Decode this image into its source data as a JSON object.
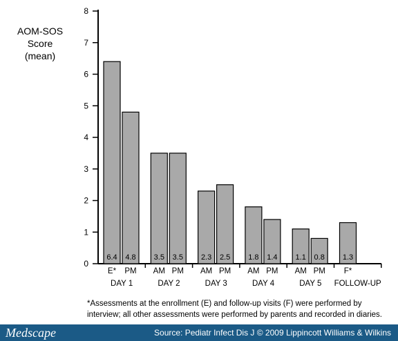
{
  "chart_data": {
    "type": "bar",
    "ylabel_line1": "AOM-SOS Score",
    "ylabel_line2": "(mean)",
    "ylim": [
      0,
      8
    ],
    "yticks": [
      0,
      1,
      2,
      3,
      4,
      5,
      6,
      7,
      8
    ],
    "grid": false,
    "groups": [
      {
        "label": "DAY 1",
        "bars": [
          {
            "label": "E*",
            "value": 6.4
          },
          {
            "label": "PM",
            "value": 4.8
          }
        ]
      },
      {
        "label": "DAY 2",
        "bars": [
          {
            "label": "AM",
            "value": 3.5
          },
          {
            "label": "PM",
            "value": 3.5
          }
        ]
      },
      {
        "label": "DAY 3",
        "bars": [
          {
            "label": "AM",
            "value": 2.3
          },
          {
            "label": "PM",
            "value": 2.5
          }
        ]
      },
      {
        "label": "DAY 4",
        "bars": [
          {
            "label": "AM",
            "value": 1.8
          },
          {
            "label": "PM",
            "value": 1.4
          }
        ]
      },
      {
        "label": "DAY 5",
        "bars": [
          {
            "label": "AM",
            "value": 1.1
          },
          {
            "label": "PM",
            "value": 0.8
          }
        ]
      },
      {
        "label": "FOLLOW-UP",
        "bars": [
          {
            "label": "F*",
            "value": 1.3
          }
        ]
      }
    ],
    "bar_color": "#a9a9a9",
    "footnote": "*Assessments at the enrollment (E) and follow-up visits (F) were performed by interview; all other assessments were performed by parents and recorded in diaries."
  },
  "footer": {
    "brand": "Medscape",
    "source": "Source: Pediatr Infect Dis J © 2009 Lippincott Williams & Wilkins",
    "background": "#1b5a86"
  }
}
